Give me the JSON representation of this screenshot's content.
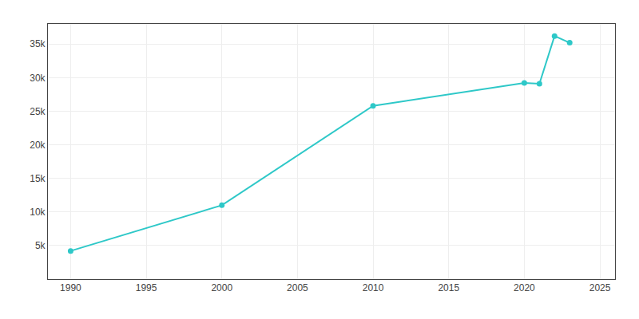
{
  "chart_data": {
    "type": "line",
    "x": [
      1990,
      2000,
      2010,
      2020,
      2021,
      2022,
      2023
    ],
    "values": [
      4200,
      11000,
      25800,
      29200,
      29100,
      36200,
      35200
    ],
    "color": "#2ec8c8",
    "marker": "circle",
    "line_style": "solid",
    "xlim": [
      1988.5,
      2026
    ],
    "xticks": [
      1990,
      1995,
      2000,
      2005,
      2010,
      2015,
      2020,
      2025
    ],
    "ylim": [
      0,
      38000
    ],
    "yticks": [
      {
        "value": 0,
        "label": ""
      },
      {
        "value": 5000,
        "label": "5k"
      },
      {
        "value": 10000,
        "label": "10k"
      },
      {
        "value": 15000,
        "label": "15k"
      },
      {
        "value": 20000,
        "label": "20k"
      },
      {
        "value": 25000,
        "label": "25k"
      },
      {
        "value": 30000,
        "label": "30k"
      },
      {
        "value": 35000,
        "label": "35k"
      }
    ],
    "grid": true
  }
}
